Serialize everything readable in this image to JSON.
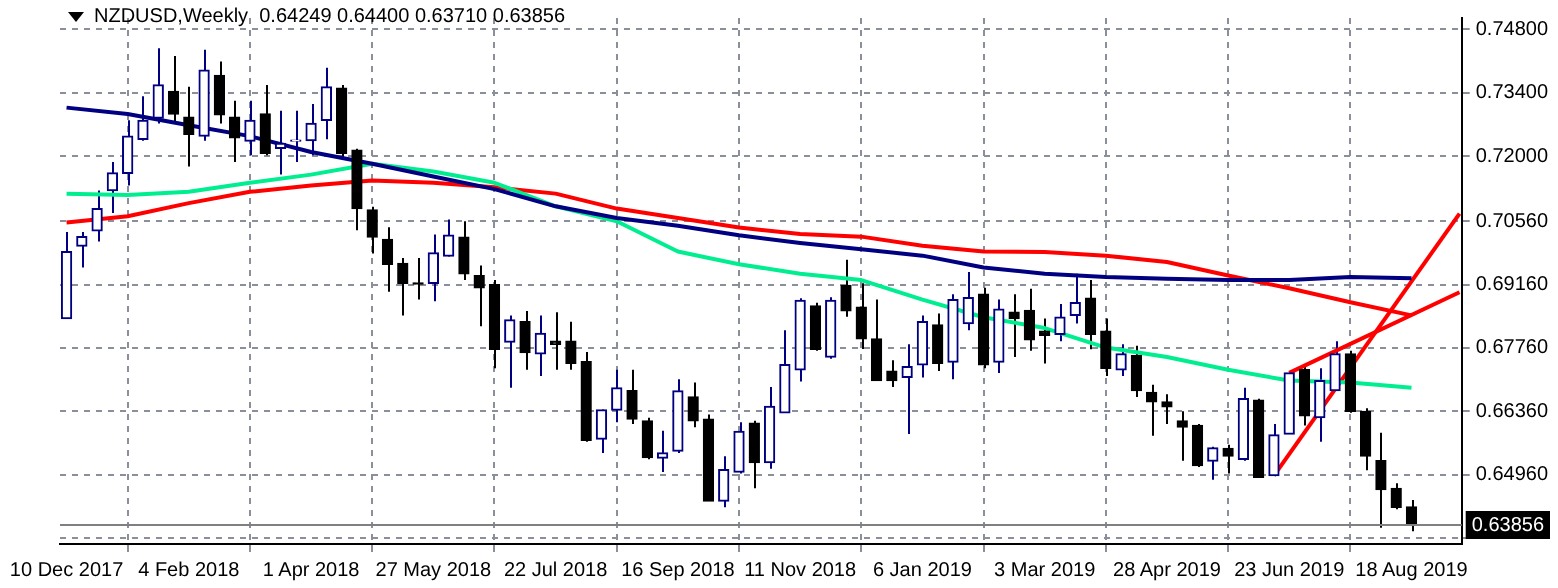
{
  "chart_data": {
    "type": "candlestick",
    "title": "NZDUSD,Weekly  0.64249 0.64400 0.63710 0.63856",
    "x": [
      "2017-12-10",
      "2017-12-17",
      "2017-12-24",
      "2017-12-31",
      "2018-01-07",
      "2018-01-14",
      "2018-01-21",
      "2018-01-28",
      "2018-02-04",
      "2018-02-11",
      "2018-02-18",
      "2018-02-25",
      "2018-03-04",
      "2018-03-11",
      "2018-03-18",
      "2018-03-25",
      "2018-04-01",
      "2018-04-08",
      "2018-04-15",
      "2018-04-22",
      "2018-04-29",
      "2018-05-06",
      "2018-05-13",
      "2018-05-20",
      "2018-05-27",
      "2018-06-03",
      "2018-06-10",
      "2018-06-17",
      "2018-06-24",
      "2018-07-01",
      "2018-07-08",
      "2018-07-15",
      "2018-07-22",
      "2018-07-29",
      "2018-08-05",
      "2018-08-12",
      "2018-08-19",
      "2018-08-26",
      "2018-09-02",
      "2018-09-09",
      "2018-09-16",
      "2018-09-23",
      "2018-09-30",
      "2018-10-07",
      "2018-10-14",
      "2018-10-21",
      "2018-10-28",
      "2018-11-04",
      "2018-11-11",
      "2018-11-18",
      "2018-11-25",
      "2018-12-02",
      "2018-12-09",
      "2018-12-16",
      "2018-12-23",
      "2018-12-30",
      "2019-01-06",
      "2019-01-13",
      "2019-01-20",
      "2019-01-27",
      "2019-02-03",
      "2019-02-10",
      "2019-02-17",
      "2019-02-24",
      "2019-03-03",
      "2019-03-10",
      "2019-03-17",
      "2019-03-24",
      "2019-03-31",
      "2019-04-07",
      "2019-04-14",
      "2019-04-21",
      "2019-04-28",
      "2019-05-05",
      "2019-05-12",
      "2019-05-19",
      "2019-05-26",
      "2019-06-02",
      "2019-06-09",
      "2019-06-16",
      "2019-06-23",
      "2019-06-30",
      "2019-07-07",
      "2019-07-14",
      "2019-07-21",
      "2019-07-28",
      "2019-08-04",
      "2019-08-11",
      "2019-08-18"
    ],
    "ohlc": [
      [
        0.6841,
        0.7032,
        0.6841,
        0.6989
      ],
      [
        0.7001,
        0.7032,
        0.6954,
        0.7022
      ],
      [
        0.7035,
        0.7124,
        0.7011,
        0.7084
      ],
      [
        0.7124,
        0.7187,
        0.7074,
        0.7163
      ],
      [
        0.7162,
        0.7279,
        0.7135,
        0.7244
      ],
      [
        0.7237,
        0.7332,
        0.7234,
        0.7279
      ],
      [
        0.7284,
        0.7438,
        0.7272,
        0.7357
      ],
      [
        0.7343,
        0.7421,
        0.7276,
        0.7293
      ],
      [
        0.7286,
        0.7353,
        0.7177,
        0.7248
      ],
      [
        0.7244,
        0.7435,
        0.7234,
        0.739
      ],
      [
        0.7378,
        0.7409,
        0.7272,
        0.7291
      ],
      [
        0.7286,
        0.7322,
        0.7187,
        0.724
      ],
      [
        0.7233,
        0.7322,
        0.7202,
        0.7279
      ],
      [
        0.7293,
        0.7357,
        0.7202,
        0.7206
      ],
      [
        0.7217,
        0.73,
        0.7159,
        0.7228
      ],
      [
        0.7233,
        0.73,
        0.7187,
        0.7235
      ],
      [
        0.7234,
        0.7315,
        0.7202,
        0.7272
      ],
      [
        0.7279,
        0.7395,
        0.7237,
        0.7353
      ],
      [
        0.735,
        0.7357,
        0.7192,
        0.7206
      ],
      [
        0.7213,
        0.7216,
        0.7036,
        0.7084
      ],
      [
        0.7081,
        0.7088,
        0.6985,
        0.7021
      ],
      [
        0.7016,
        0.7043,
        0.69,
        0.6961
      ],
      [
        0.6963,
        0.6975,
        0.6848,
        0.6919
      ],
      [
        0.692,
        0.6975,
        0.6883,
        0.6917
      ],
      [
        0.6919,
        0.7027,
        0.6879,
        0.6986
      ],
      [
        0.6979,
        0.706,
        0.6978,
        0.7025
      ],
      [
        0.7021,
        0.7056,
        0.6926,
        0.694
      ],
      [
        0.6936,
        0.6958,
        0.6824,
        0.6909
      ],
      [
        0.6916,
        0.6926,
        0.6731,
        0.6773
      ],
      [
        0.6789,
        0.6848,
        0.6688,
        0.6838
      ],
      [
        0.6834,
        0.6858,
        0.6728,
        0.6766
      ],
      [
        0.6763,
        0.6848,
        0.6714,
        0.6808
      ],
      [
        0.6791,
        0.6855,
        0.6728,
        0.6784
      ],
      [
        0.6791,
        0.6834,
        0.6728,
        0.6742
      ],
      [
        0.6746,
        0.6767,
        0.6569,
        0.6572
      ],
      [
        0.6575,
        0.664,
        0.6544,
        0.6639
      ],
      [
        0.6639,
        0.6728,
        0.6612,
        0.6688
      ],
      [
        0.6682,
        0.6728,
        0.6608,
        0.6619
      ],
      [
        0.6615,
        0.6622,
        0.653,
        0.6534
      ],
      [
        0.6533,
        0.6593,
        0.6502,
        0.6544
      ],
      [
        0.6548,
        0.6707,
        0.6544,
        0.6681
      ],
      [
        0.6668,
        0.67,
        0.6601,
        0.6615
      ],
      [
        0.6619,
        0.6629,
        0.6438,
        0.6438
      ],
      [
        0.6438,
        0.6537,
        0.6424,
        0.6507
      ],
      [
        0.6502,
        0.6612,
        0.6499,
        0.6592
      ],
      [
        0.661,
        0.6615,
        0.6466,
        0.6523
      ],
      [
        0.6523,
        0.669,
        0.6509,
        0.6647
      ],
      [
        0.6633,
        0.6815,
        0.6633,
        0.6739
      ],
      [
        0.6728,
        0.6886,
        0.6702,
        0.6881
      ],
      [
        0.6869,
        0.6876,
        0.677,
        0.6773
      ],
      [
        0.6756,
        0.6888,
        0.6752,
        0.6881
      ],
      [
        0.6914,
        0.6971,
        0.6845,
        0.6858
      ],
      [
        0.6866,
        0.6919,
        0.6774,
        0.6796
      ],
      [
        0.6796,
        0.6883,
        0.6704,
        0.6704
      ],
      [
        0.6725,
        0.6749,
        0.669,
        0.6704
      ],
      [
        0.6711,
        0.6784,
        0.6586,
        0.6735
      ],
      [
        0.6739,
        0.6848,
        0.6711,
        0.6834
      ],
      [
        0.6827,
        0.6852,
        0.6725,
        0.6742
      ],
      [
        0.6745,
        0.6895,
        0.6707,
        0.6883
      ],
      [
        0.683,
        0.6944,
        0.6815,
        0.6887
      ],
      [
        0.6895,
        0.6909,
        0.6731,
        0.6739
      ],
      [
        0.6745,
        0.6883,
        0.6721,
        0.6862
      ],
      [
        0.6855,
        0.6895,
        0.6756,
        0.6841
      ],
      [
        0.6859,
        0.6907,
        0.677,
        0.6794
      ],
      [
        0.6813,
        0.6841,
        0.6742,
        0.6804
      ],
      [
        0.6806,
        0.6873,
        0.6791,
        0.6844
      ],
      [
        0.6848,
        0.694,
        0.683,
        0.6876
      ],
      [
        0.6886,
        0.6926,
        0.6773,
        0.6806
      ],
      [
        0.6813,
        0.6841,
        0.6714,
        0.6731
      ],
      [
        0.6728,
        0.6784,
        0.6714,
        0.6763
      ],
      [
        0.6759,
        0.6781,
        0.6668,
        0.6682
      ],
      [
        0.6678,
        0.6695,
        0.6582,
        0.6657
      ],
      [
        0.6657,
        0.6674,
        0.6608,
        0.6646
      ],
      [
        0.6615,
        0.6636,
        0.6527,
        0.6601
      ],
      [
        0.6605,
        0.6608,
        0.6513,
        0.6516
      ],
      [
        0.6526,
        0.6558,
        0.6485,
        0.6555
      ],
      [
        0.6554,
        0.6562,
        0.6499,
        0.6537
      ],
      [
        0.653,
        0.6688,
        0.6527,
        0.6664
      ],
      [
        0.6661,
        0.6664,
        0.649,
        0.649
      ],
      [
        0.6494,
        0.6608,
        0.6494,
        0.6584
      ],
      [
        0.6586,
        0.6725,
        0.6586,
        0.6721
      ],
      [
        0.6728,
        0.6735,
        0.6605,
        0.6626
      ],
      [
        0.6622,
        0.6731,
        0.6569,
        0.6704
      ],
      [
        0.6682,
        0.6791,
        0.6682,
        0.6763
      ],
      [
        0.6763,
        0.677,
        0.6633,
        0.6636
      ],
      [
        0.6636,
        0.6643,
        0.6506,
        0.6537
      ],
      [
        0.6527,
        0.6589,
        0.6379,
        0.6463
      ],
      [
        0.6466,
        0.6477,
        0.642,
        0.6424
      ],
      [
        0.64249,
        0.644,
        0.6371,
        0.63856
      ]
    ],
    "colors": [
      "#000080",
      "#000080",
      "#000080",
      "#000080",
      "#000080",
      "#000080",
      "#000080",
      "#000000",
      "#000000",
      "#000080",
      "#000000",
      "#000000",
      "#000080",
      "#000000",
      "#000080",
      "#000080",
      "#000080",
      "#000080",
      "#000000",
      "#000000",
      "#000000",
      "#000000",
      "#000000",
      "#000000",
      "#000080",
      "#000080",
      "#000000",
      "#000000",
      "#000000",
      "#000080",
      "#000000",
      "#000080",
      "#000000",
      "#000000",
      "#000000",
      "#000080",
      "#000080",
      "#000000",
      "#000000",
      "#000080",
      "#000080",
      "#000000",
      "#000000",
      "#000080",
      "#000080",
      "#000000",
      "#000080",
      "#000080",
      "#000080",
      "#000000",
      "#000080",
      "#000000",
      "#000000",
      "#000000",
      "#000000",
      "#000080",
      "#000080",
      "#000000",
      "#000080",
      "#000080",
      "#000000",
      "#000080",
      "#000000",
      "#000000",
      "#000000",
      "#000080",
      "#000080",
      "#000000",
      "#000000",
      "#000080",
      "#000000",
      "#000000",
      "#000000",
      "#000000",
      "#000000",
      "#000080",
      "#000000",
      "#000080",
      "#000000",
      "#000080",
      "#000080",
      "#000000",
      "#000080",
      "#000080",
      "#000000",
      "#000000",
      "#000000",
      "#000000",
      "#000000"
    ],
    "series": [
      {
        "type": "line",
        "color": "#000080",
        "x": [
          "2017-12-10",
          "2018-01-07",
          "2018-02-04",
          "2018-03-04",
          "2018-04-01",
          "2018-04-29",
          "2018-05-27",
          "2018-06-24",
          "2018-07-22",
          "2018-08-19",
          "2018-09-16",
          "2018-10-14",
          "2018-11-11",
          "2018-12-09",
          "2019-01-06",
          "2019-02-03",
          "2019-03-03",
          "2019-03-31",
          "2019-04-28",
          "2019-05-26",
          "2019-06-23",
          "2019-07-21",
          "2019-08-18"
        ],
        "values": [
          0.7307,
          0.7293,
          0.7268,
          0.7244,
          0.7209,
          0.7183,
          0.7155,
          0.7127,
          0.7089,
          0.7063,
          0.7046,
          0.7025,
          0.7008,
          0.6994,
          0.698,
          0.6954,
          0.694,
          0.6933,
          0.6929,
          0.6926,
          0.6926,
          0.6933,
          0.693
        ]
      },
      {
        "type": "line",
        "color": "#00ee90",
        "x": [
          "2017-12-10",
          "2018-01-07",
          "2018-02-04",
          "2018-03-04",
          "2018-04-01",
          "2018-04-29",
          "2018-05-27",
          "2018-06-24",
          "2018-07-22",
          "2018-08-19",
          "2018-09-16",
          "2018-10-14",
          "2018-11-11",
          "2018-12-09",
          "2019-01-06",
          "2019-02-03",
          "2019-03-03",
          "2019-03-31",
          "2019-04-28",
          "2019-05-26",
          "2019-06-23",
          "2019-07-21",
          "2019-08-18"
        ],
        "values": [
          0.7117,
          0.7114,
          0.7121,
          0.7141,
          0.7159,
          0.7183,
          0.7166,
          0.7141,
          0.7089,
          0.7056,
          0.6989,
          0.6961,
          0.694,
          0.6926,
          0.6883,
          0.6844,
          0.682,
          0.6777,
          0.6756,
          0.6728,
          0.6704,
          0.67,
          0.6688
        ]
      },
      {
        "type": "line",
        "color": "#ff0000",
        "x": [
          "2017-12-10",
          "2018-01-07",
          "2018-02-04",
          "2018-03-04",
          "2018-04-01",
          "2018-04-29",
          "2018-05-27",
          "2018-06-24",
          "2018-07-22",
          "2018-08-19",
          "2018-09-16",
          "2018-10-14",
          "2018-11-11",
          "2018-12-09",
          "2019-01-06",
          "2019-02-03",
          "2019-03-03",
          "2019-03-31",
          "2019-04-28",
          "2019-05-26",
          "2019-06-23",
          "2019-07-21",
          "2019-08-18"
        ],
        "values": [
          0.7053,
          0.7067,
          0.7096,
          0.7121,
          0.7135,
          0.7146,
          0.7141,
          0.7131,
          0.7117,
          0.7084,
          0.7063,
          0.7042,
          0.7028,
          0.7022,
          0.7002,
          0.6989,
          0.6988,
          0.698,
          0.6966,
          0.6936,
          0.6908,
          0.6877,
          0.6848
        ]
      },
      {
        "type": "line",
        "color": "#ff0000",
        "x": [
          "2019-06-16",
          "2019-09-09"
        ],
        "values": [
          0.6494,
          0.7073
        ]
      },
      {
        "type": "line",
        "color": "#ff0000",
        "x": [
          "2019-06-23",
          "2019-09-09"
        ],
        "values": [
          0.6721,
          0.6899
        ]
      }
    ],
    "xlim": [
      "2017-12-07",
      "2019-09-10"
    ],
    "xticks": [
      {
        "value": "2017-12-10",
        "label": "10 Dec 2017"
      },
      {
        "value": "2018-02-04",
        "label": "4 Feb 2018"
      },
      {
        "value": "2018-04-01",
        "label": "1 Apr 2018"
      },
      {
        "value": "2018-05-27",
        "label": "27 May 2018"
      },
      {
        "value": "2018-07-22",
        "label": "22 Jul 2018"
      },
      {
        "value": "2018-09-16",
        "label": "16 Sep 2018"
      },
      {
        "value": "2018-11-11",
        "label": "11 Nov 2018"
      },
      {
        "value": "2019-01-06",
        "label": "6 Jan 2019"
      },
      {
        "value": "2019-03-03",
        "label": "3 Mar 2019"
      },
      {
        "value": "2019-04-28",
        "label": "28 Apr 2019"
      },
      {
        "value": "2019-06-23",
        "label": "23 Jun 2019"
      },
      {
        "value": "2019-08-18",
        "label": "18 Aug 2019"
      }
    ],
    "ylim": [
      0.6343,
      0.7505
    ],
    "yticks": [
      {
        "value": 0.6356,
        "label": null
      },
      {
        "value": 0.6496,
        "label": "0.64960"
      },
      {
        "value": 0.6636,
        "label": "0.66360"
      },
      {
        "value": 0.6776,
        "label": "0.67760"
      },
      {
        "value": 0.6916,
        "label": "0.69160"
      },
      {
        "value": 0.7056,
        "label": "0.70560"
      },
      {
        "value": 0.72,
        "label": "0.72000"
      },
      {
        "value": 0.734,
        "label": "0.73400"
      },
      {
        "value": 0.748,
        "label": "0.74800"
      }
    ],
    "ref_lines": [
      {
        "axis": "y",
        "value": 0.63856,
        "label": "0.63856",
        "color": "#808080"
      }
    ],
    "grid": true,
    "marker": "none"
  }
}
